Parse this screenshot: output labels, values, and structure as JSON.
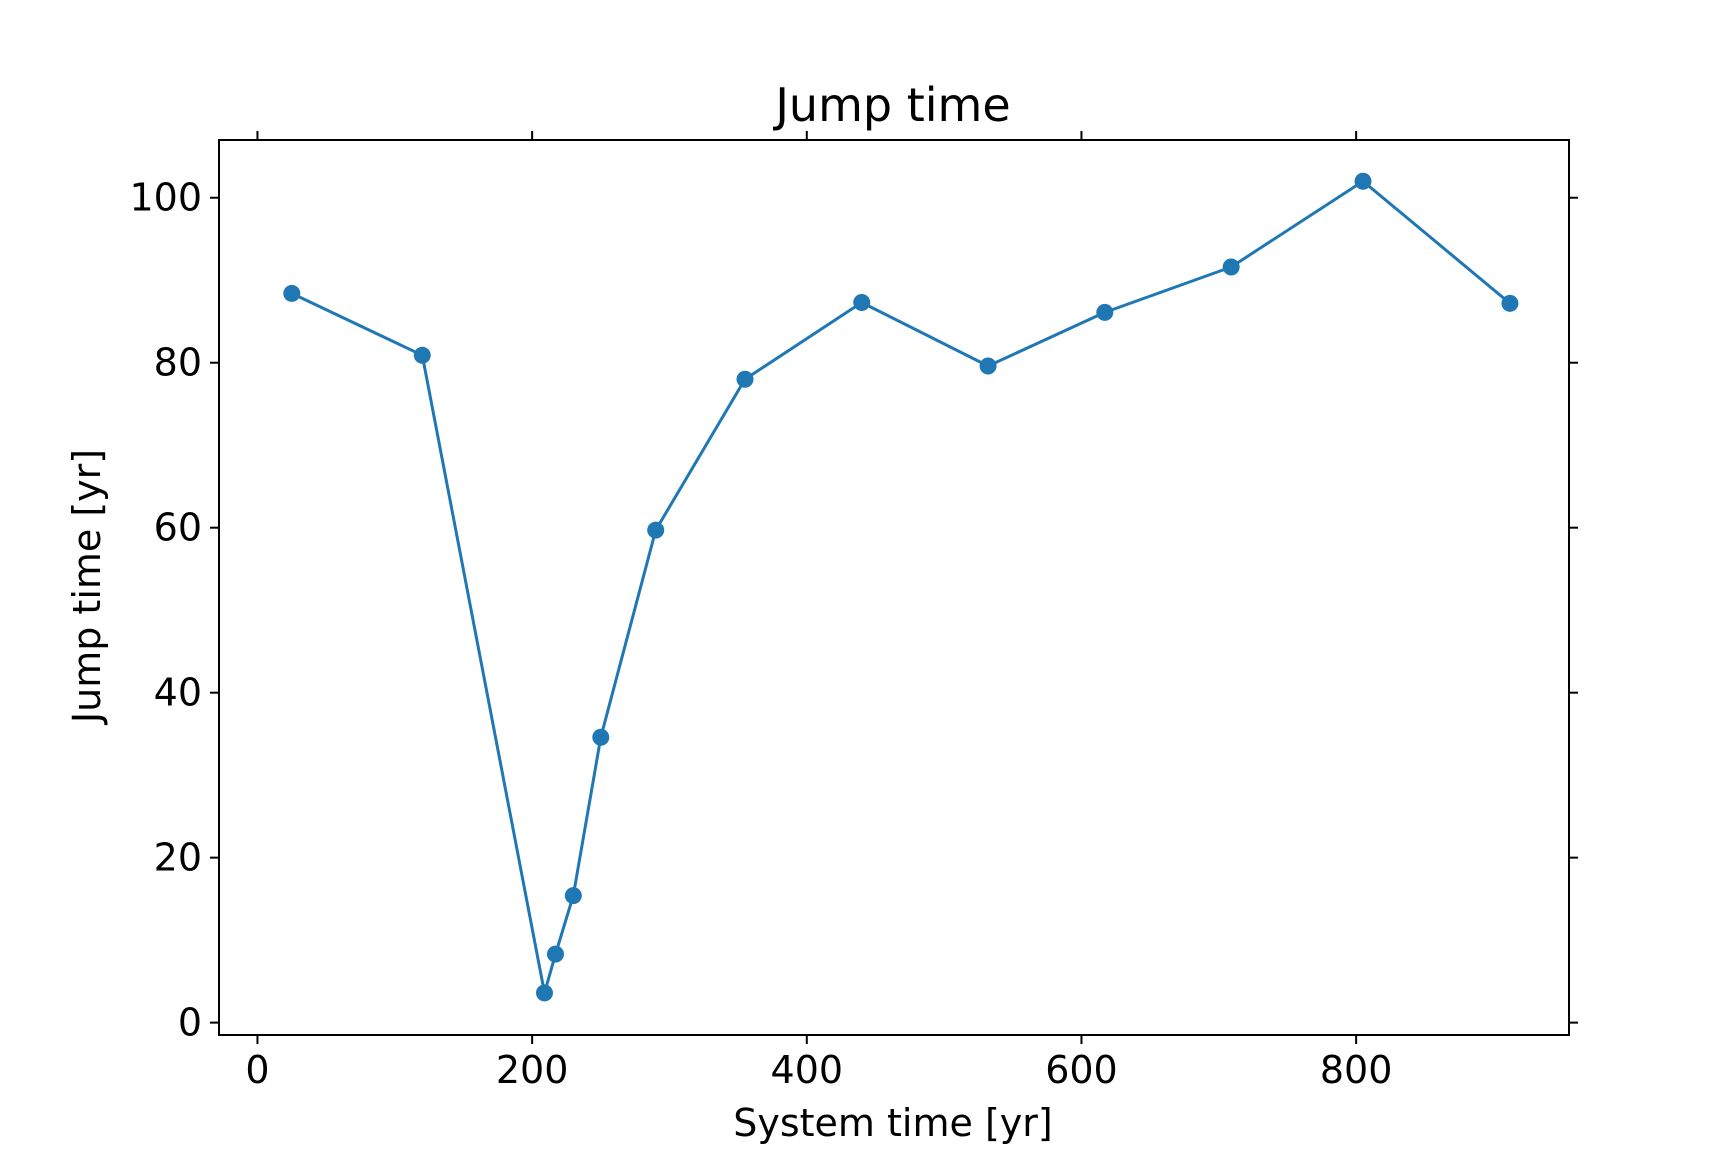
{
  "chart_data": {
    "type": "line",
    "title": "Jump time",
    "xlabel": "System time [yr]",
    "ylabel": "Jump time [yr]",
    "xlim": [
      -28,
      955
    ],
    "ylim": [
      -1.5,
      107
    ],
    "xticks": [
      0,
      200,
      400,
      600,
      800
    ],
    "yticks": [
      0,
      20,
      40,
      60,
      80,
      100
    ],
    "grid": false,
    "legend": null,
    "series": [
      {
        "color": "#1f77b4",
        "marker": "circle",
        "x": [
          25,
          120,
          209,
          217,
          230,
          250,
          290,
          355,
          440,
          532,
          617,
          709,
          805,
          912
        ],
        "y": [
          88.4,
          80.9,
          3.6,
          8.3,
          15.4,
          34.6,
          59.7,
          78.0,
          87.3,
          79.6,
          86.1,
          91.6,
          102.0,
          87.2
        ]
      }
    ]
  }
}
